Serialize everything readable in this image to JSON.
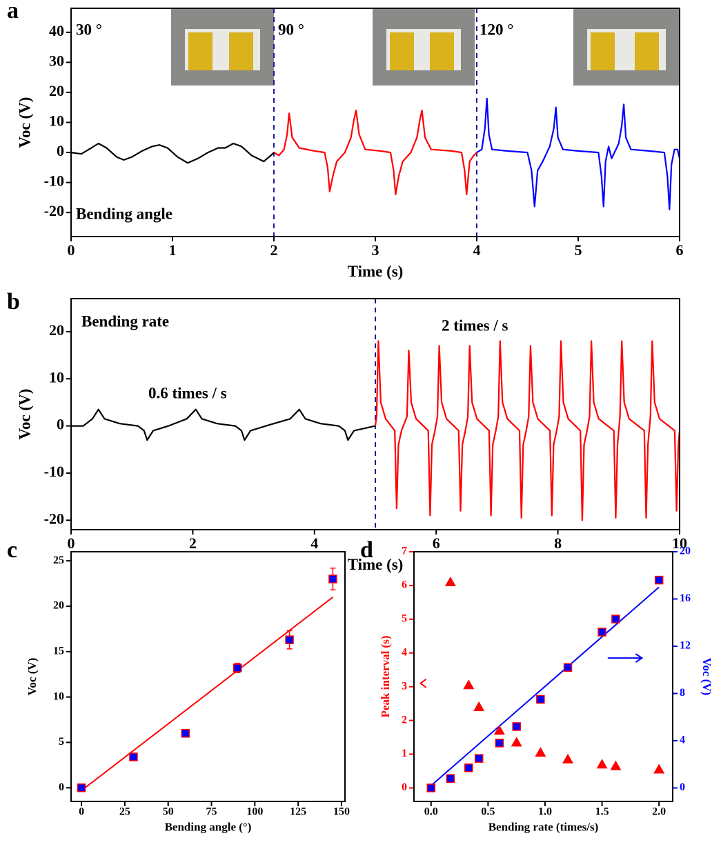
{
  "chart_data": [
    {
      "type": "line",
      "panel_label": "a",
      "xlabel": "Time (s)",
      "ylabel": "Voc (V)",
      "xlim": [
        0,
        6
      ],
      "ylim": [
        -28,
        48
      ],
      "xticks": [
        0,
        1,
        2,
        3,
        4,
        5,
        6
      ],
      "yticks": [
        -20,
        -10,
        0,
        10,
        20,
        30,
        40
      ],
      "vlines": [
        2,
        4
      ],
      "annotations": [
        "30 °",
        "90 °",
        "120 °",
        "Bending angle"
      ],
      "series": [
        {
          "color": "#000000",
          "x": [
            0,
            0.1,
            0.2,
            0.27,
            0.35,
            0.45,
            0.52,
            0.6,
            0.7,
            0.8,
            0.87,
            0.95,
            1.05,
            1.15,
            1.25,
            1.35,
            1.45,
            1.52,
            1.6,
            1.68,
            1.78,
            1.9,
            1.97,
            2.0
          ],
          "values": [
            0,
            -0.5,
            1.5,
            3,
            1.5,
            -1.5,
            -2.5,
            -1.5,
            0.5,
            2,
            2.5,
            1.5,
            -1.5,
            -3.5,
            -2,
            0,
            1.5,
            1.5,
            3,
            2,
            -1,
            -3,
            -1,
            0
          ]
        },
        {
          "color": "#ff0000",
          "x": [
            2.0,
            2.05,
            2.1,
            2.13,
            2.15,
            2.18,
            2.25,
            2.4,
            2.5,
            2.53,
            2.55,
            2.58,
            2.62,
            2.7,
            2.76,
            2.79,
            2.81,
            2.84,
            2.9,
            3.05,
            3.15,
            3.18,
            3.2,
            3.23,
            3.27,
            3.35,
            3.41,
            3.44,
            3.46,
            3.49,
            3.55,
            3.75,
            3.85,
            3.88,
            3.9,
            3.93,
            3.97,
            4.0
          ],
          "values": [
            0,
            -1,
            1,
            6,
            13,
            5,
            1.5,
            0.5,
            0,
            -5,
            -13,
            -8,
            -3,
            0,
            5,
            11,
            14,
            6,
            1,
            0.5,
            0,
            -6,
            -14,
            -8,
            -3,
            0,
            5,
            11,
            14,
            5,
            1,
            0.5,
            0,
            -6,
            -14,
            -3,
            -1,
            0
          ]
        },
        {
          "color": "#0000ff",
          "x": [
            4.0,
            4.05,
            4.08,
            4.1,
            4.12,
            4.15,
            4.3,
            4.5,
            4.54,
            4.57,
            4.6,
            4.65,
            4.72,
            4.76,
            4.78,
            4.8,
            4.85,
            5.0,
            5.2,
            5.23,
            5.25,
            5.27,
            5.3,
            5.33,
            5.4,
            5.43,
            5.45,
            5.47,
            5.52,
            5.7,
            5.85,
            5.88,
            5.9,
            5.92,
            5.95,
            5.98,
            6.0
          ],
          "values": [
            0,
            1,
            8,
            18,
            6,
            1,
            0.5,
            0,
            -6,
            -18,
            -6,
            -3,
            2,
            8,
            15,
            5,
            1,
            0.5,
            0,
            -8,
            -18,
            -3,
            2,
            -2,
            3,
            9,
            16,
            5,
            1,
            0.5,
            0,
            -8,
            -19,
            -4,
            1,
            1,
            -2
          ]
        }
      ]
    },
    {
      "type": "line",
      "panel_label": "b",
      "xlabel": "Time (s)",
      "ylabel": "Voc (V)",
      "xlim": [
        0,
        10
      ],
      "ylim": [
        -22,
        27
      ],
      "xticks": [
        0,
        2,
        4,
        6,
        8,
        10
      ],
      "yticks": [
        -20,
        -10,
        0,
        10,
        20
      ],
      "vlines": [
        5
      ],
      "annotations": [
        "Bending rate",
        "0.6 times / s",
        "2 times / s"
      ],
      "series": [
        {
          "color": "#000000",
          "x": [
            0,
            0.2,
            0.35,
            0.45,
            0.55,
            0.8,
            1.1,
            1.2,
            1.25,
            1.35,
            1.6,
            1.9,
            2.05,
            2.15,
            2.4,
            2.7,
            2.8,
            2.85,
            2.95,
            3.2,
            3.6,
            3.75,
            3.85,
            4.1,
            4.4,
            4.5,
            4.55,
            4.65,
            5.0
          ],
          "values": [
            0,
            0,
            1.5,
            3.5,
            1.5,
            0.5,
            0,
            -1,
            -3,
            -1,
            0,
            1.5,
            3.5,
            1.5,
            0.5,
            0,
            -1,
            -3,
            -1,
            0,
            1.5,
            3.5,
            1.5,
            0.5,
            0,
            -1,
            -3,
            -1,
            0
          ]
        },
        {
          "color": "#ff0000",
          "x": [
            5.0,
            5.02,
            5.05,
            5.09,
            5.17,
            5.32,
            5.35,
            5.38,
            5.43,
            5.52,
            5.55,
            5.59,
            5.67,
            5.87,
            5.9,
            5.93,
            5.98,
            6.02,
            6.05,
            6.09,
            6.17,
            6.37,
            6.4,
            6.43,
            6.48,
            6.52,
            6.55,
            6.59,
            6.67,
            6.87,
            6.9,
            6.93,
            6.98,
            7.02,
            7.05,
            7.09,
            7.17,
            7.37,
            7.4,
            7.43,
            7.48,
            7.52,
            7.55,
            7.59,
            7.67,
            7.87,
            7.9,
            7.93,
            7.98,
            8.02,
            8.05,
            8.09,
            8.17,
            8.37,
            8.4,
            8.43,
            8.48,
            8.52,
            8.55,
            8.59,
            8.67,
            8.92,
            8.95,
            8.98,
            9.0,
            9.02,
            9.05,
            9.09,
            9.17,
            9.42,
            9.45,
            9.48,
            9.5,
            9.52,
            9.55,
            9.59,
            9.67,
            9.92,
            9.95,
            9.98,
            10.0
          ],
          "values": [
            0,
            2,
            18,
            5,
            1.5,
            -1,
            -17.5,
            -4,
            -1,
            2,
            16,
            5,
            1.5,
            -1,
            -19,
            -4,
            -1,
            2,
            17,
            5,
            1.5,
            -1,
            -18,
            -4,
            -1,
            2,
            17,
            5,
            1.5,
            -1,
            -19,
            -4,
            -1,
            2,
            18,
            5,
            1.5,
            -1,
            -19.5,
            -4,
            -1,
            2,
            17,
            5,
            1.5,
            -1,
            -19,
            -4,
            -1,
            2,
            18,
            5,
            1.5,
            -1,
            -20,
            -4,
            -1,
            2,
            18,
            5,
            1.5,
            -1,
            -19.5,
            -4,
            -1,
            2,
            18,
            5,
            1.5,
            -1,
            -19.5,
            -4,
            -1,
            2,
            18,
            5,
            1.5,
            -1,
            -18,
            -4,
            -1
          ]
        }
      ]
    },
    {
      "type": "scatter",
      "panel_label": "c",
      "xlabel": "Bending angle (°)",
      "ylabel": "Voc (V)",
      "xlim": [
        -6,
        152
      ],
      "ylim": [
        -1.5,
        26
      ],
      "xticks": [
        0,
        25,
        50,
        75,
        100,
        125,
        150
      ],
      "yticks": [
        0,
        5,
        10,
        15,
        20,
        25
      ],
      "series": [
        {
          "marker": "square",
          "color": "#0000ff",
          "edge_color": "#ff0000",
          "x": [
            0,
            30,
            60,
            90,
            120,
            145
          ],
          "values": [
            0,
            3.4,
            6,
            13.2,
            16.3,
            23
          ],
          "errors": [
            0.2,
            0.2,
            0.3,
            0.5,
            1,
            1.2
          ]
        }
      ],
      "fit": {
        "color": "#ff0000",
        "x": [
          0,
          145
        ],
        "values": [
          -0.3,
          21
        ]
      }
    },
    {
      "type": "scatter",
      "panel_label": "d",
      "xlabel": "Bending rate (times/s)",
      "ylabel": "Peak interval (s)",
      "y2label": "Voc (V)",
      "ycolor": "#ff0000",
      "y2color": "#0000ff",
      "xlim": [
        -0.15,
        2.12
      ],
      "ylim": [
        -0.4,
        7
      ],
      "y2lim": [
        -1.14,
        20
      ],
      "xticks": [
        {
          "value": 0,
          "label": "0.0"
        },
        0.5,
        {
          "value": 1,
          "label": "1.0"
        },
        1.5,
        {
          "value": 2,
          "label": "2.0"
        }
      ],
      "yticks": [
        0,
        1,
        2,
        3,
        4,
        5,
        6,
        7
      ],
      "y2ticks": [
        0,
        4,
        8,
        12,
        16,
        20
      ],
      "series": [
        {
          "marker": "triangle",
          "color": "#ff0000",
          "x": [
            0.17,
            0.33,
            0.42,
            0.6,
            0.75,
            0.96,
            1.2,
            1.5,
            1.62,
            2.0
          ],
          "values": [
            6.1,
            3.05,
            2.4,
            1.7,
            1.35,
            1.05,
            0.85,
            0.7,
            0.65,
            0.55
          ]
        },
        {
          "marker": "square",
          "color": "#0000ff",
          "edge_color": "#ff0000",
          "axis": "y2",
          "x": [
            0,
            0.17,
            0.33,
            0.42,
            0.6,
            0.75,
            0.96,
            1.2,
            1.5,
            1.62,
            2.0
          ],
          "values": [
            0,
            0.8,
            1.7,
            2.5,
            3.8,
            5.2,
            7.5,
            10.2,
            13.2,
            14.3,
            17.6
          ]
        }
      ],
      "fit": {
        "color": "#0000ff",
        "axis": "y2",
        "x": [
          0,
          2
        ],
        "values": [
          0.2,
          17
        ]
      }
    }
  ]
}
